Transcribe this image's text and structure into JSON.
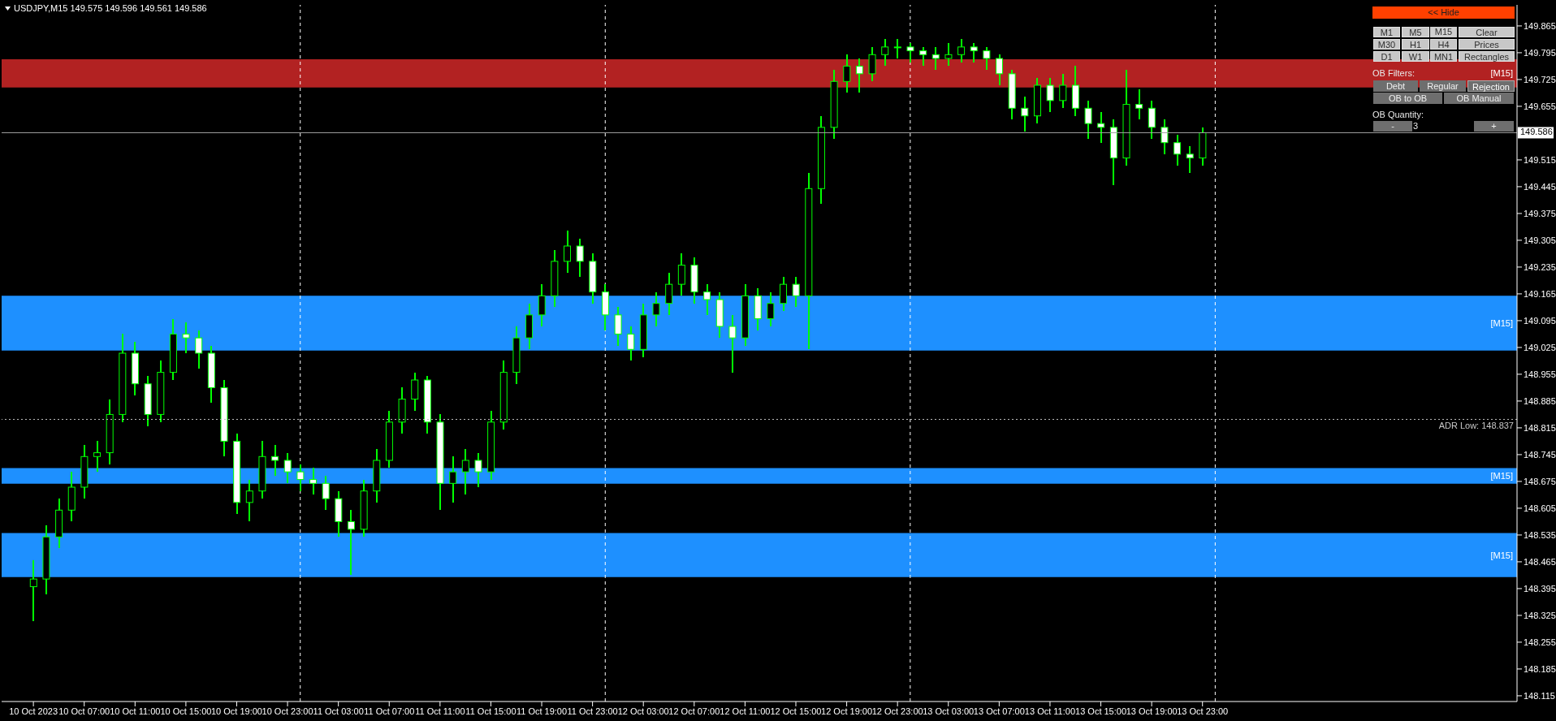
{
  "chart_data": {
    "type": "candlestick",
    "title": "USDJPY,M15  149.575 149.596 149.561 149.586",
    "x": [
      "2023-10-10T03:00",
      "2023-10-10T04:00",
      "2023-10-10T05:00",
      "2023-10-10T06:00",
      "2023-10-10T07:00",
      "2023-10-10T08:00",
      "2023-10-10T09:00",
      "2023-10-10T10:00",
      "2023-10-10T11:00",
      "2023-10-10T12:00",
      "2023-10-10T13:00",
      "2023-10-10T14:00",
      "2023-10-10T15:00",
      "2023-10-10T16:00",
      "2023-10-10T17:00",
      "2023-10-10T18:00",
      "2023-10-10T19:00",
      "2023-10-10T20:00",
      "2023-10-10T21:00",
      "2023-10-10T22:00",
      "2023-10-10T23:00",
      "2023-10-11T00:00",
      "2023-10-11T01:00",
      "2023-10-11T02:00",
      "2023-10-11T03:00",
      "2023-10-11T04:00",
      "2023-10-11T05:00",
      "2023-10-11T06:00",
      "2023-10-11T07:00",
      "2023-10-11T08:00",
      "2023-10-11T09:00",
      "2023-10-11T10:00",
      "2023-10-11T11:00",
      "2023-10-11T12:00",
      "2023-10-11T13:00",
      "2023-10-11T14:00",
      "2023-10-11T15:00",
      "2023-10-11T16:00",
      "2023-10-11T17:00",
      "2023-10-11T18:00",
      "2023-10-11T19:00",
      "2023-10-11T20:00",
      "2023-10-11T21:00",
      "2023-10-11T22:00",
      "2023-10-11T23:00",
      "2023-10-12T00:00",
      "2023-10-12T01:00",
      "2023-10-12T02:00",
      "2023-10-12T03:00",
      "2023-10-12T04:00",
      "2023-10-12T05:00",
      "2023-10-12T06:00",
      "2023-10-12T07:00",
      "2023-10-12T08:00",
      "2023-10-12T09:00",
      "2023-10-12T10:00",
      "2023-10-12T11:00",
      "2023-10-12T12:00",
      "2023-10-12T13:00",
      "2023-10-12T14:00",
      "2023-10-12T15:00",
      "2023-10-12T16:00",
      "2023-10-12T17:00",
      "2023-10-12T18:00",
      "2023-10-12T19:00",
      "2023-10-12T20:00",
      "2023-10-12T21:00",
      "2023-10-12T22:00",
      "2023-10-12T23:00",
      "2023-10-13T00:00",
      "2023-10-13T01:00",
      "2023-10-13T02:00",
      "2023-10-13T03:00",
      "2023-10-13T04:00",
      "2023-10-13T05:00",
      "2023-10-13T06:00",
      "2023-10-13T07:00",
      "2023-10-13T08:00",
      "2023-10-13T09:00",
      "2023-10-13T10:00",
      "2023-10-13T11:00",
      "2023-10-13T12:00",
      "2023-10-13T13:00",
      "2023-10-13T14:00",
      "2023-10-13T15:00",
      "2023-10-13T16:00",
      "2023-10-13T17:00",
      "2023-10-13T18:00",
      "2023-10-13T19:00",
      "2023-10-13T20:00",
      "2023-10-13T21:00",
      "2023-10-13T22:00",
      "2023-10-13T23:00"
    ],
    "series": [
      {
        "color": "#00ff00",
        "ohlc": [
          [
            148.4,
            148.47,
            148.31,
            148.42
          ],
          [
            148.42,
            148.56,
            148.38,
            148.53
          ],
          [
            148.53,
            148.63,
            148.5,
            148.6
          ],
          [
            148.6,
            148.7,
            148.57,
            148.66
          ],
          [
            148.66,
            148.77,
            148.63,
            148.74
          ],
          [
            148.74,
            148.78,
            148.7,
            148.75
          ],
          [
            148.75,
            148.89,
            148.72,
            148.85
          ],
          [
            148.85,
            149.06,
            148.83,
            149.01
          ],
          [
            149.01,
            149.04,
            148.9,
            148.93
          ],
          [
            148.93,
            148.95,
            148.82,
            148.85
          ],
          [
            148.85,
            148.99,
            148.83,
            148.96
          ],
          [
            148.96,
            149.1,
            148.94,
            149.06
          ],
          [
            149.06,
            149.09,
            149.01,
            149.05
          ],
          [
            149.05,
            149.07,
            148.97,
            149.01
          ],
          [
            149.01,
            149.03,
            148.88,
            148.92
          ],
          [
            148.92,
            148.94,
            148.74,
            148.78
          ],
          [
            148.78,
            148.8,
            148.59,
            148.62
          ],
          [
            148.62,
            148.68,
            148.57,
            148.65
          ],
          [
            148.65,
            148.78,
            148.63,
            148.74
          ],
          [
            148.74,
            148.77,
            148.69,
            148.73
          ],
          [
            148.73,
            148.75,
            148.67,
            148.7
          ],
          [
            148.7,
            148.72,
            148.65,
            148.68
          ],
          [
            148.68,
            148.71,
            148.64,
            148.67
          ],
          [
            148.67,
            148.69,
            148.6,
            148.63
          ],
          [
            148.63,
            148.65,
            148.53,
            148.57
          ],
          [
            148.57,
            148.6,
            148.43,
            148.55
          ],
          [
            148.55,
            148.68,
            148.53,
            148.65
          ],
          [
            148.65,
            148.76,
            148.62,
            148.73
          ],
          [
            148.73,
            148.86,
            148.71,
            148.83
          ],
          [
            148.83,
            148.92,
            148.8,
            148.89
          ],
          [
            148.89,
            148.96,
            148.86,
            148.94
          ],
          [
            148.94,
            148.95,
            148.8,
            148.83
          ],
          [
            148.83,
            148.85,
            148.6,
            148.67
          ],
          [
            148.67,
            148.74,
            148.62,
            148.7
          ],
          [
            148.7,
            148.76,
            148.64,
            148.73
          ],
          [
            148.73,
            148.75,
            148.66,
            148.7
          ],
          [
            148.7,
            148.86,
            148.68,
            148.83
          ],
          [
            148.83,
            148.99,
            148.81,
            148.96
          ],
          [
            148.96,
            149.08,
            148.93,
            149.05
          ],
          [
            149.05,
            149.14,
            149.02,
            149.11
          ],
          [
            149.11,
            149.19,
            149.08,
            149.16
          ],
          [
            149.16,
            149.28,
            149.13,
            149.25
          ],
          [
            149.25,
            149.33,
            149.22,
            149.29
          ],
          [
            149.29,
            149.31,
            149.21,
            149.25
          ],
          [
            149.25,
            149.27,
            149.14,
            149.17
          ],
          [
            149.17,
            149.19,
            149.07,
            149.11
          ],
          [
            149.11,
            149.13,
            149.03,
            149.06
          ],
          [
            149.06,
            149.08,
            148.99,
            149.02
          ],
          [
            149.02,
            149.14,
            149.0,
            149.11
          ],
          [
            149.11,
            149.17,
            149.08,
            149.14
          ],
          [
            149.14,
            149.22,
            149.11,
            149.19
          ],
          [
            149.19,
            149.27,
            149.16,
            149.24
          ],
          [
            149.24,
            149.26,
            149.14,
            149.17
          ],
          [
            149.17,
            149.19,
            149.11,
            149.15
          ],
          [
            149.15,
            149.17,
            149.05,
            149.08
          ],
          [
            149.08,
            149.11,
            148.96,
            149.05
          ],
          [
            149.05,
            149.19,
            149.03,
            149.16
          ],
          [
            149.16,
            149.18,
            149.07,
            149.1
          ],
          [
            149.1,
            149.17,
            149.08,
            149.14
          ],
          [
            149.14,
            149.21,
            149.12,
            149.19
          ],
          [
            149.19,
            149.21,
            149.13,
            149.16
          ],
          [
            149.16,
            149.48,
            149.02,
            149.44
          ],
          [
            149.44,
            149.63,
            149.4,
            149.6
          ],
          [
            149.6,
            149.75,
            149.57,
            149.72
          ],
          [
            149.72,
            149.79,
            149.69,
            149.76
          ],
          [
            149.76,
            149.78,
            149.69,
            149.74
          ],
          [
            149.74,
            149.81,
            149.72,
            149.79
          ],
          [
            149.79,
            149.83,
            149.76,
            149.81
          ],
          [
            149.81,
            149.83,
            149.78,
            149.81
          ],
          [
            149.81,
            149.82,
            149.77,
            149.8
          ],
          [
            149.8,
            149.81,
            149.76,
            149.79
          ],
          [
            149.79,
            149.81,
            149.75,
            149.78
          ],
          [
            149.78,
            149.82,
            149.76,
            149.79
          ],
          [
            149.79,
            149.83,
            149.77,
            149.81
          ],
          [
            149.81,
            149.82,
            149.77,
            149.8
          ],
          [
            149.8,
            149.81,
            149.75,
            149.78
          ],
          [
            149.78,
            149.79,
            149.71,
            149.74
          ],
          [
            149.74,
            149.75,
            149.62,
            149.65
          ],
          [
            149.65,
            149.68,
            149.59,
            149.63
          ],
          [
            149.63,
            149.73,
            149.61,
            149.71
          ],
          [
            149.71,
            149.73,
            149.64,
            149.67
          ],
          [
            149.67,
            149.74,
            149.65,
            149.71
          ],
          [
            149.71,
            149.76,
            149.63,
            149.65
          ],
          [
            149.65,
            149.67,
            149.57,
            149.61
          ],
          [
            149.61,
            149.64,
            149.56,
            149.6
          ],
          [
            149.6,
            149.62,
            149.45,
            149.52
          ],
          [
            149.52,
            149.75,
            149.5,
            149.66
          ],
          [
            149.66,
            149.7,
            149.62,
            149.65
          ],
          [
            149.65,
            149.67,
            149.57,
            149.6
          ],
          [
            149.6,
            149.62,
            149.53,
            149.56
          ],
          [
            149.56,
            149.58,
            149.5,
            149.53
          ],
          [
            149.53,
            149.55,
            149.48,
            149.52
          ],
          [
            149.52,
            149.6,
            149.5,
            149.586
          ]
        ]
      }
    ],
    "xlim": [
      "2023-10-10T00:30",
      "2023-10-14T23:45"
    ],
    "xticks": [
      {
        "value": "2023-10-10T03:00",
        "label": "10 Oct 2023"
      },
      {
        "value": "2023-10-10T07:00",
        "label": "10 Oct 07:00"
      },
      {
        "value": "2023-10-10T11:00",
        "label": "10 Oct 11:00"
      },
      {
        "value": "2023-10-10T15:00",
        "label": "10 Oct 15:00"
      },
      {
        "value": "2023-10-10T19:00",
        "label": "10 Oct 19:00"
      },
      {
        "value": "2023-10-10T23:00",
        "label": "10 Oct 23:00"
      },
      {
        "value": "2023-10-11T03:00",
        "label": "11 Oct 03:00"
      },
      {
        "value": "2023-10-11T07:00",
        "label": "11 Oct 07:00"
      },
      {
        "value": "2023-10-11T11:00",
        "label": "11 Oct 11:00"
      },
      {
        "value": "2023-10-11T15:00",
        "label": "11 Oct 15:00"
      },
      {
        "value": "2023-10-11T19:00",
        "label": "11 Oct 19:00"
      },
      {
        "value": "2023-10-11T23:00",
        "label": "11 Oct 23:00"
      },
      {
        "value": "2023-10-12T03:00",
        "label": "12 Oct 03:00"
      },
      {
        "value": "2023-10-12T07:00",
        "label": "12 Oct 07:00"
      },
      {
        "value": "2023-10-12T11:00",
        "label": "12 Oct 11:00"
      },
      {
        "value": "2023-10-12T15:00",
        "label": "12 Oct 15:00"
      },
      {
        "value": "2023-10-12T19:00",
        "label": "12 Oct 19:00"
      },
      {
        "value": "2023-10-12T23:00",
        "label": "12 Oct 23:00"
      },
      {
        "value": "2023-10-13T03:00",
        "label": "13 Oct 03:00"
      },
      {
        "value": "2023-10-13T07:00",
        "label": "13 Oct 07:00"
      },
      {
        "value": "2023-10-13T11:00",
        "label": "13 Oct 11:00"
      },
      {
        "value": "2023-10-13T15:00",
        "label": "13 Oct 15:00"
      },
      {
        "value": "2023-10-13T19:00",
        "label": "13 Oct 19:00"
      },
      {
        "value": "2023-10-13T23:00",
        "label": "13 Oct 23:00"
      }
    ],
    "ylim": [
      148.1,
      149.92
    ],
    "yticks": [
      148.115,
      148.185,
      148.255,
      148.325,
      148.395,
      148.465,
      148.535,
      148.605,
      148.675,
      148.745,
      148.815,
      148.885,
      148.955,
      149.025,
      149.095,
      149.165,
      149.235,
      149.305,
      149.375,
      149.445,
      149.515,
      149.655,
      149.725,
      149.795,
      149.865
    ],
    "grid": false,
    "ref_lines": [
      {
        "axis": "x",
        "value": "2023-10-11T00:00",
        "color": "#ffffff",
        "line_style": "dashed"
      },
      {
        "axis": "x",
        "value": "2023-10-12T00:00",
        "color": "#ffffff",
        "line_style": "dashed"
      },
      {
        "axis": "x",
        "value": "2023-10-13T00:00",
        "color": "#ffffff",
        "line_style": "dashed"
      },
      {
        "axis": "x",
        "value": "2023-10-14T00:00",
        "color": "#ffffff",
        "line_style": "dashed"
      },
      {
        "axis": "y",
        "value": 149.586,
        "label": "149.586",
        "color": "#a0a0a0",
        "line_style": "solid"
      },
      {
        "axis": "y",
        "value": 148.837,
        "label": "ADR Low: 148.837",
        "color": "#c0c0c0",
        "line_style": "dotted"
      }
    ],
    "bands": [
      {
        "axis": "y",
        "from": 149.704,
        "to": 149.778,
        "label": "[M15]",
        "color": "#b22222"
      },
      {
        "axis": "y",
        "from": 149.017,
        "to": 149.16,
        "label": "[M15]",
        "color": "#1e90ff"
      },
      {
        "axis": "y",
        "from": 148.669,
        "to": 148.71,
        "label": "[M15]",
        "color": "#1e90ff"
      },
      {
        "axis": "y",
        "from": 148.425,
        "to": 148.54,
        "label": "[M15]",
        "color": "#1e90ff"
      }
    ],
    "annotations": [
      "<< Hide",
      "M1",
      "M5",
      "M15",
      "Clear",
      "M30",
      "H1",
      "H4",
      "Prices",
      "D1",
      "W1",
      "MN1",
      "Rectangles",
      "OB Filters:",
      "Debt",
      "Regular",
      "Rejection",
      "OB to OB",
      "OB Manual",
      "OB Quantity:",
      "-",
      "3",
      "+"
    ]
  }
}
